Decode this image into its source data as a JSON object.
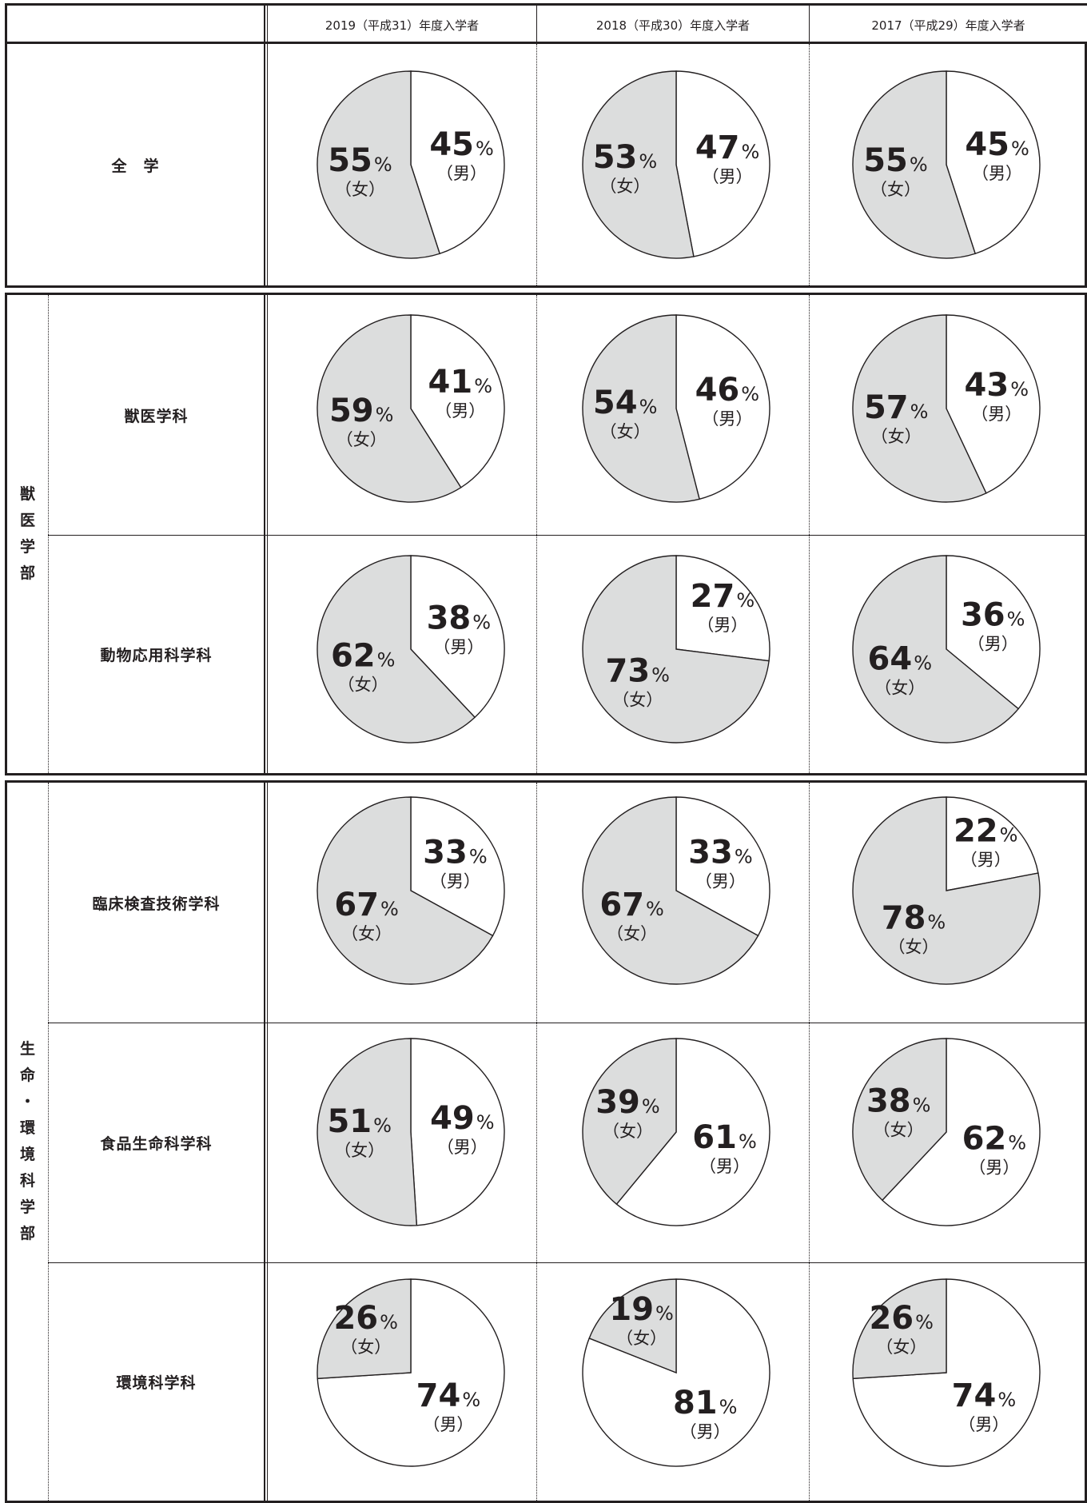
{
  "headers": [
    "2019（平成31）年度入学者",
    "2018（平成30）年度入学者",
    "2017（平成29）年度入学者"
  ],
  "faculties": {
    "veterinary": [
      "獣",
      "医",
      "学",
      "部"
    ],
    "life_env": [
      "生",
      "命",
      "・",
      "環",
      "境",
      "科",
      "学",
      "部"
    ]
  },
  "labels": {
    "male": "（男）",
    "female": "（女）",
    "percent": "%"
  },
  "colors": {
    "female_fill": "#dcdddd",
    "male_fill": "#ffffff",
    "stroke": "#231f20"
  },
  "chart_data": [
    {
      "type": "pie",
      "row": "全　学",
      "column": "2019（平成31）年度入学者",
      "male": 45,
      "female": 55
    },
    {
      "type": "pie",
      "row": "全　学",
      "column": "2018（平成30）年度入学者",
      "male": 47,
      "female": 53
    },
    {
      "type": "pie",
      "row": "全　学",
      "column": "2017（平成29）年度入学者",
      "male": 45,
      "female": 55
    },
    {
      "type": "pie",
      "row": "獣医学科",
      "column": "2019（平成31）年度入学者",
      "male": 41,
      "female": 59
    },
    {
      "type": "pie",
      "row": "獣医学科",
      "column": "2018（平成30）年度入学者",
      "male": 46,
      "female": 54
    },
    {
      "type": "pie",
      "row": "獣医学科",
      "column": "2017（平成29）年度入学者",
      "male": 43,
      "female": 57
    },
    {
      "type": "pie",
      "row": "動物応用科学科",
      "column": "2019（平成31）年度入学者",
      "male": 38,
      "female": 62
    },
    {
      "type": "pie",
      "row": "動物応用科学科",
      "column": "2018（平成30）年度入学者",
      "male": 27,
      "female": 73
    },
    {
      "type": "pie",
      "row": "動物応用科学科",
      "column": "2017（平成29）年度入学者",
      "male": 36,
      "female": 64
    },
    {
      "type": "pie",
      "row": "臨床検査技術学科",
      "column": "2019（平成31）年度入学者",
      "male": 33,
      "female": 67
    },
    {
      "type": "pie",
      "row": "臨床検査技術学科",
      "column": "2018（平成30）年度入学者",
      "male": 33,
      "female": 67
    },
    {
      "type": "pie",
      "row": "臨床検査技術学科",
      "column": "2017（平成29）年度入学者",
      "male": 22,
      "female": 78
    },
    {
      "type": "pie",
      "row": "食品生命科学科",
      "column": "2019（平成31）年度入学者",
      "male": 49,
      "female": 51
    },
    {
      "type": "pie",
      "row": "食品生命科学科",
      "column": "2018（平成30）年度入学者",
      "male": 61,
      "female": 39
    },
    {
      "type": "pie",
      "row": "食品生命科学科",
      "column": "2017（平成29）年度入学者",
      "male": 62,
      "female": 38
    },
    {
      "type": "pie",
      "row": "環境科学科",
      "column": "2019（平成31）年度入学者",
      "male": 74,
      "female": 26
    },
    {
      "type": "pie",
      "row": "環境科学科",
      "column": "2018（平成30）年度入学者",
      "male": 81,
      "female": 19
    },
    {
      "type": "pie",
      "row": "環境科学科",
      "column": "2017（平成29）年度入学者",
      "male": 74,
      "female": 26
    }
  ]
}
